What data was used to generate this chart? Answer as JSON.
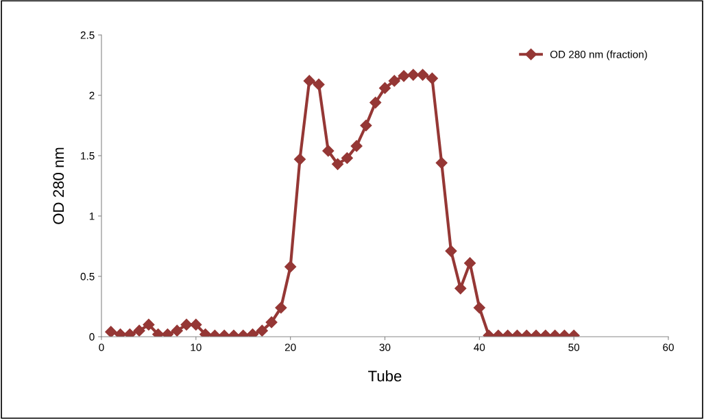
{
  "chart_data": {
    "type": "line",
    "xlabel": "Tube",
    "ylabel": "OD 280 nm",
    "x": [
      1,
      2,
      3,
      4,
      5,
      6,
      7,
      8,
      9,
      10,
      11,
      12,
      13,
      14,
      15,
      16,
      17,
      18,
      19,
      20,
      21,
      22,
      23,
      24,
      25,
      26,
      27,
      28,
      29,
      30,
      31,
      32,
      33,
      34,
      35,
      36,
      37,
      38,
      39,
      40,
      41,
      42,
      43,
      44,
      45,
      46,
      47,
      48,
      49,
      50
    ],
    "series": [
      {
        "name": "OD 280 nm (fraction)",
        "color": "#953735",
        "values": [
          0.04,
          0.02,
          0.02,
          0.05,
          0.1,
          0.02,
          0.02,
          0.05,
          0.1,
          0.1,
          0.02,
          0.01,
          0.01,
          0.01,
          0.01,
          0.02,
          0.05,
          0.12,
          0.24,
          0.58,
          1.47,
          2.12,
          2.09,
          1.54,
          1.43,
          1.48,
          1.58,
          1.75,
          1.94,
          2.06,
          2.12,
          2.16,
          2.17,
          2.17,
          2.14,
          1.44,
          0.71,
          0.4,
          0.61,
          0.24,
          0.01,
          0.01,
          0.01,
          0.01,
          0.01,
          0.01,
          0.01,
          0.01,
          0.01,
          0.01
        ]
      }
    ],
    "xlim": [
      0,
      60
    ],
    "xticks": [
      0,
      10,
      20,
      30,
      40,
      50,
      60
    ],
    "ylim": [
      0,
      2.5
    ],
    "yticks": [
      0,
      0.5,
      1,
      1.5,
      2,
      2.5
    ],
    "grid": false,
    "legend": "top right",
    "marker": "diamond",
    "line_style": "solid"
  }
}
